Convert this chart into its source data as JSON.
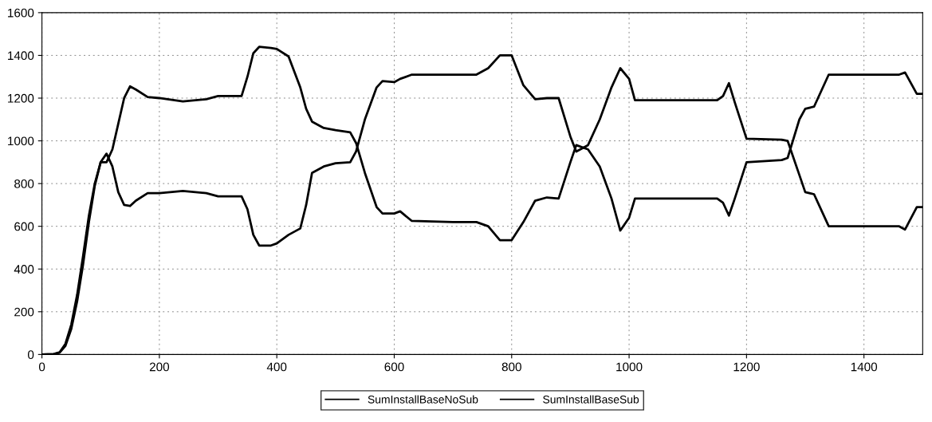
{
  "chart_data": {
    "type": "line",
    "xlim": [
      0,
      1500
    ],
    "ylim": [
      0,
      1600
    ],
    "xticks": [
      0,
      200,
      400,
      600,
      800,
      1000,
      1200,
      1400
    ],
    "yticks": [
      0,
      200,
      400,
      600,
      800,
      1000,
      1200,
      1400,
      1600
    ],
    "grid": true,
    "legend": "bottom",
    "marker": "none",
    "line_style": "solid",
    "series": [
      {
        "name": "SumInstallBaseNoSub",
        "color": "#000000",
        "x": [
          0,
          20,
          30,
          40,
          50,
          60,
          70,
          80,
          90,
          100,
          110,
          120,
          130,
          140,
          150,
          160,
          180,
          200,
          240,
          280,
          300,
          340,
          350,
          360,
          370,
          390,
          400,
          420,
          440,
          450,
          460,
          480,
          500,
          525,
          535,
          550,
          570,
          580,
          600,
          610,
          630,
          700,
          740,
          760,
          780,
          800,
          820,
          840,
          860,
          880,
          900,
          910,
          930,
          950,
          970,
          985,
          1000,
          1010,
          1150,
          1160,
          1170,
          1180,
          1200,
          1260,
          1270,
          1290,
          1300,
          1315,
          1340,
          1460,
          1470,
          1490,
          1500
        ],
        "values": [
          0,
          2,
          8,
          40,
          120,
          250,
          420,
          620,
          790,
          900,
          900,
          960,
          1080,
          1200,
          1255,
          1240,
          1205,
          1200,
          1185,
          1195,
          1210,
          1210,
          1300,
          1410,
          1440,
          1435,
          1430,
          1395,
          1250,
          1150,
          1090,
          1060,
          1050,
          1040,
          990,
          850,
          690,
          660,
          660,
          670,
          625,
          620,
          620,
          600,
          535,
          535,
          620,
          720,
          735,
          730,
          900,
          980,
          960,
          880,
          730,
          580,
          640,
          730,
          730,
          710,
          650,
          730,
          900,
          910,
          920,
          1100,
          1150,
          1160,
          1310,
          1310,
          1320,
          1220,
          1220
        ]
      },
      {
        "name": "SumInstallBaseSub",
        "color": "#000000",
        "x": [
          0,
          20,
          30,
          40,
          50,
          60,
          70,
          80,
          90,
          100,
          110,
          120,
          130,
          140,
          150,
          160,
          180,
          200,
          240,
          280,
          300,
          340,
          350,
          360,
          370,
          390,
          400,
          420,
          440,
          450,
          460,
          480,
          500,
          525,
          535,
          550,
          570,
          580,
          600,
          610,
          630,
          700,
          740,
          760,
          780,
          800,
          820,
          840,
          860,
          880,
          900,
          910,
          930,
          950,
          970,
          985,
          1000,
          1010,
          1150,
          1160,
          1170,
          1180,
          1200,
          1260,
          1270,
          1290,
          1300,
          1315,
          1340,
          1460,
          1470,
          1490,
          1500
        ],
        "values": [
          0,
          2,
          10,
          50,
          140,
          280,
          460,
          650,
          800,
          900,
          940,
          880,
          760,
          700,
          695,
          720,
          755,
          755,
          765,
          755,
          740,
          740,
          680,
          560,
          510,
          510,
          520,
          560,
          590,
          700,
          850,
          880,
          895,
          900,
          950,
          1100,
          1250,
          1280,
          1275,
          1290,
          1310,
          1310,
          1310,
          1340,
          1400,
          1400,
          1260,
          1195,
          1200,
          1200,
          1020,
          950,
          980,
          1100,
          1250,
          1340,
          1290,
          1190,
          1190,
          1210,
          1270,
          1180,
          1010,
          1005,
          1000,
          840,
          760,
          750,
          600,
          600,
          585,
          690,
          690
        ]
      }
    ]
  }
}
